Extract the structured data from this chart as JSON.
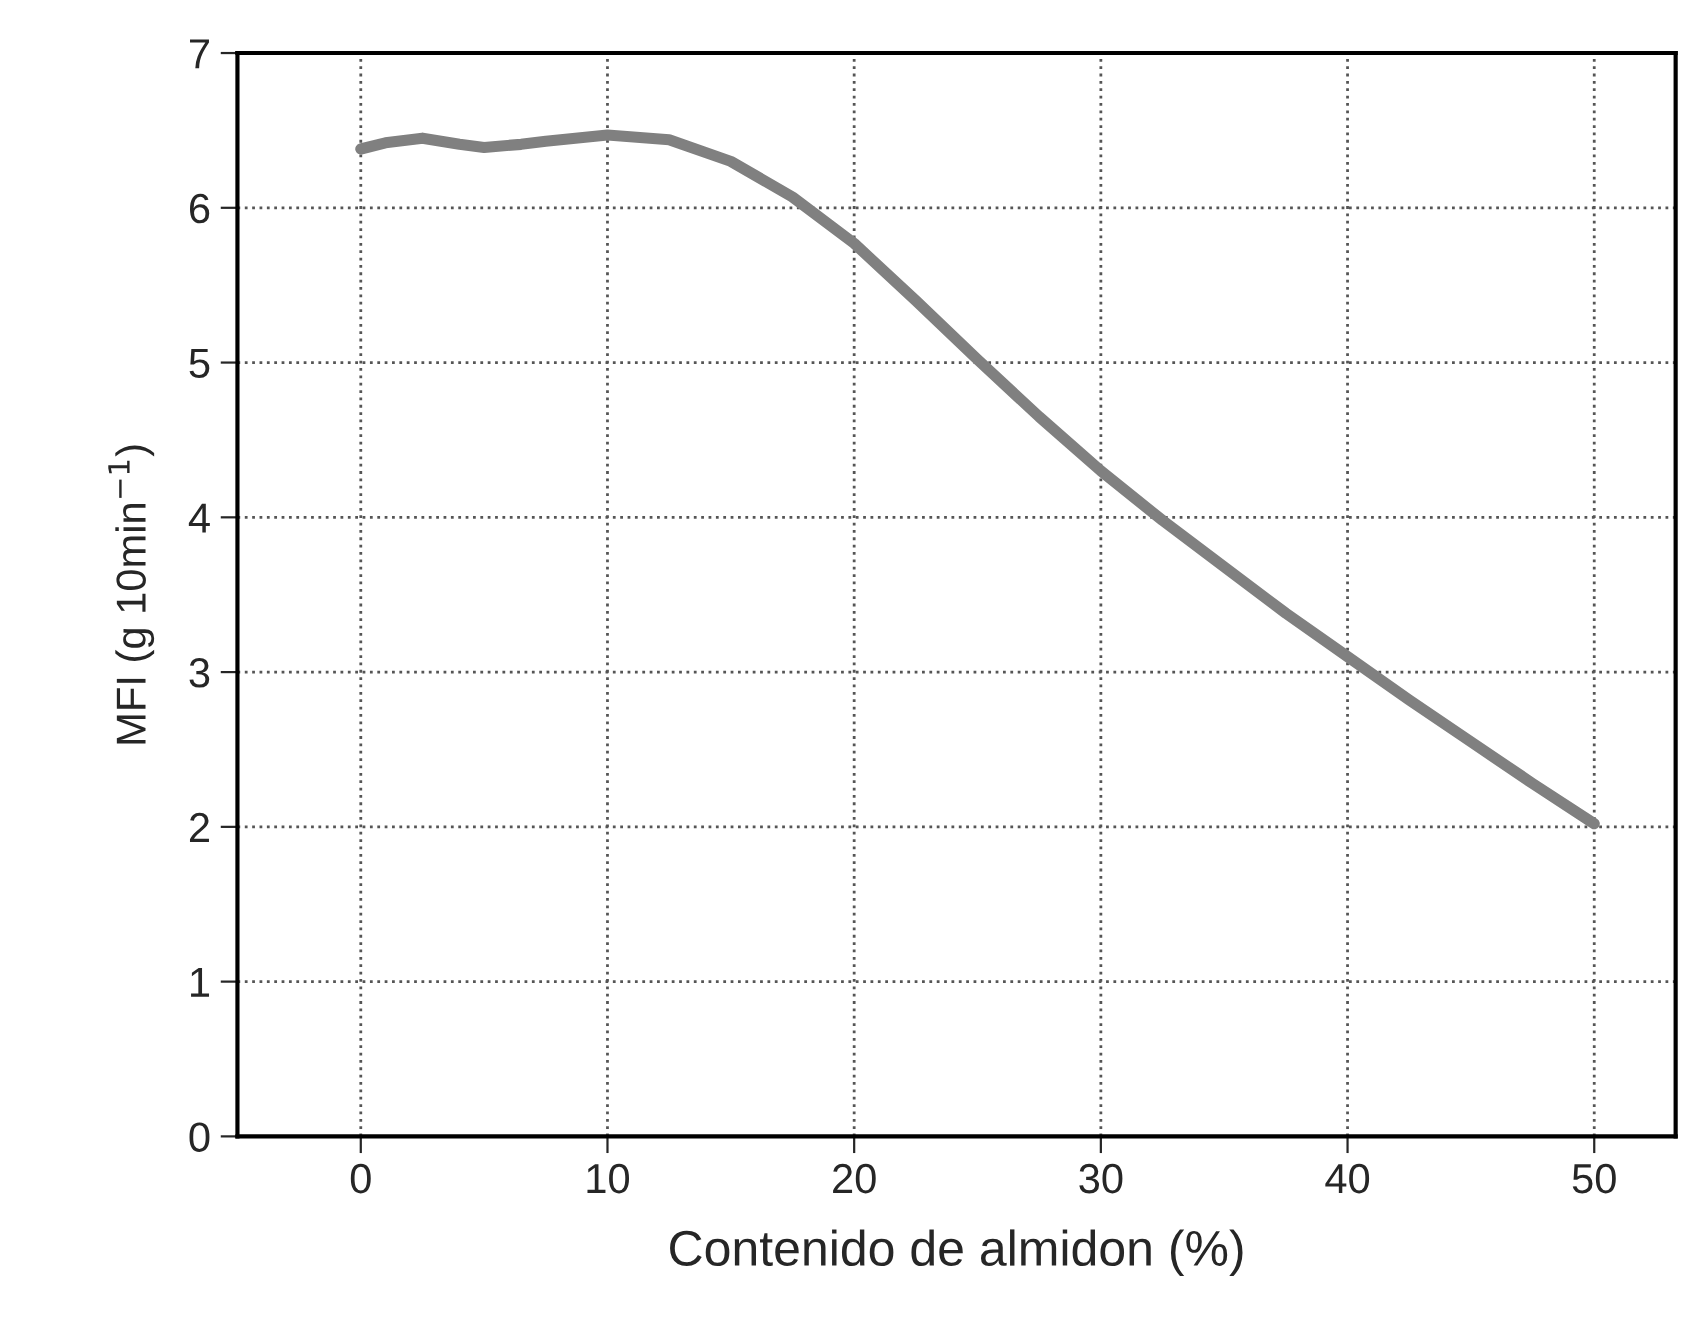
{
  "chart_data": {
    "type": "line",
    "xlabel": "Contenido de almidon (%)",
    "ylabel": "MFI (g 10min$^{−1}$)",
    "series": [
      {
        "color": "#808080",
        "x": [
          0,
          1,
          2.5,
          4,
          5,
          6.5,
          7.5,
          10,
          12.5,
          15,
          17.5,
          20,
          22.5,
          25,
          27.5,
          30,
          32.5,
          35,
          37.5,
          40,
          42.5,
          45,
          47.5,
          50
        ],
        "values": [
          6.38,
          6.42,
          6.45,
          6.41,
          6.39,
          6.41,
          6.43,
          6.47,
          6.44,
          6.3,
          6.07,
          5.77,
          5.4,
          5.02,
          4.65,
          4.3,
          3.98,
          3.68,
          3.38,
          3.1,
          2.82,
          2.55,
          2.28,
          2.02
        ]
      }
    ],
    "xlim": [
      -5,
      53.3
    ],
    "ylim": [
      0,
      7
    ],
    "xticks": [
      0,
      10,
      20,
      30,
      40,
      50
    ],
    "yticks": [
      0,
      1,
      2,
      3,
      4,
      5,
      6,
      7
    ],
    "grid": true,
    "line_style": "solid",
    "marker": "none"
  }
}
